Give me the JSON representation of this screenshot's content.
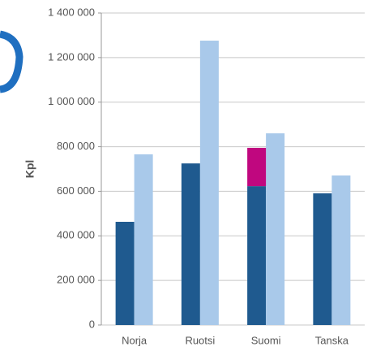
{
  "chart_data": {
    "type": "bar",
    "y_label": "Kpl",
    "categories": [
      "Norja",
      "Ruotsi",
      "Suomi",
      "Tanska"
    ],
    "series": [
      {
        "color": "#1f5a8f",
        "values": [
          463000,
          725000,
          623000,
          591000
        ]
      },
      {
        "color": "#a9c9ea",
        "values": [
          766000,
          1276000,
          860000,
          671000
        ]
      },
      {
        "color": "#c0077f",
        "values": [
          null,
          null,
          172000,
          null
        ],
        "stack_on_series": 0
      }
    ],
    "ylim": [
      0,
      1400000
    ],
    "yticks": [
      0,
      {
        "value": 200000,
        "label": "200 000"
      },
      {
        "value": 400000,
        "label": "400 000"
      },
      {
        "value": 600000,
        "label": "600 000"
      },
      {
        "value": 800000,
        "label": "800 000"
      },
      {
        "value": 1000000,
        "label": "1 000 000"
      },
      {
        "value": 1200000,
        "label": "1 200 000"
      },
      {
        "value": 1400000,
        "label": "1 400 000"
      }
    ],
    "grid": true
  }
}
